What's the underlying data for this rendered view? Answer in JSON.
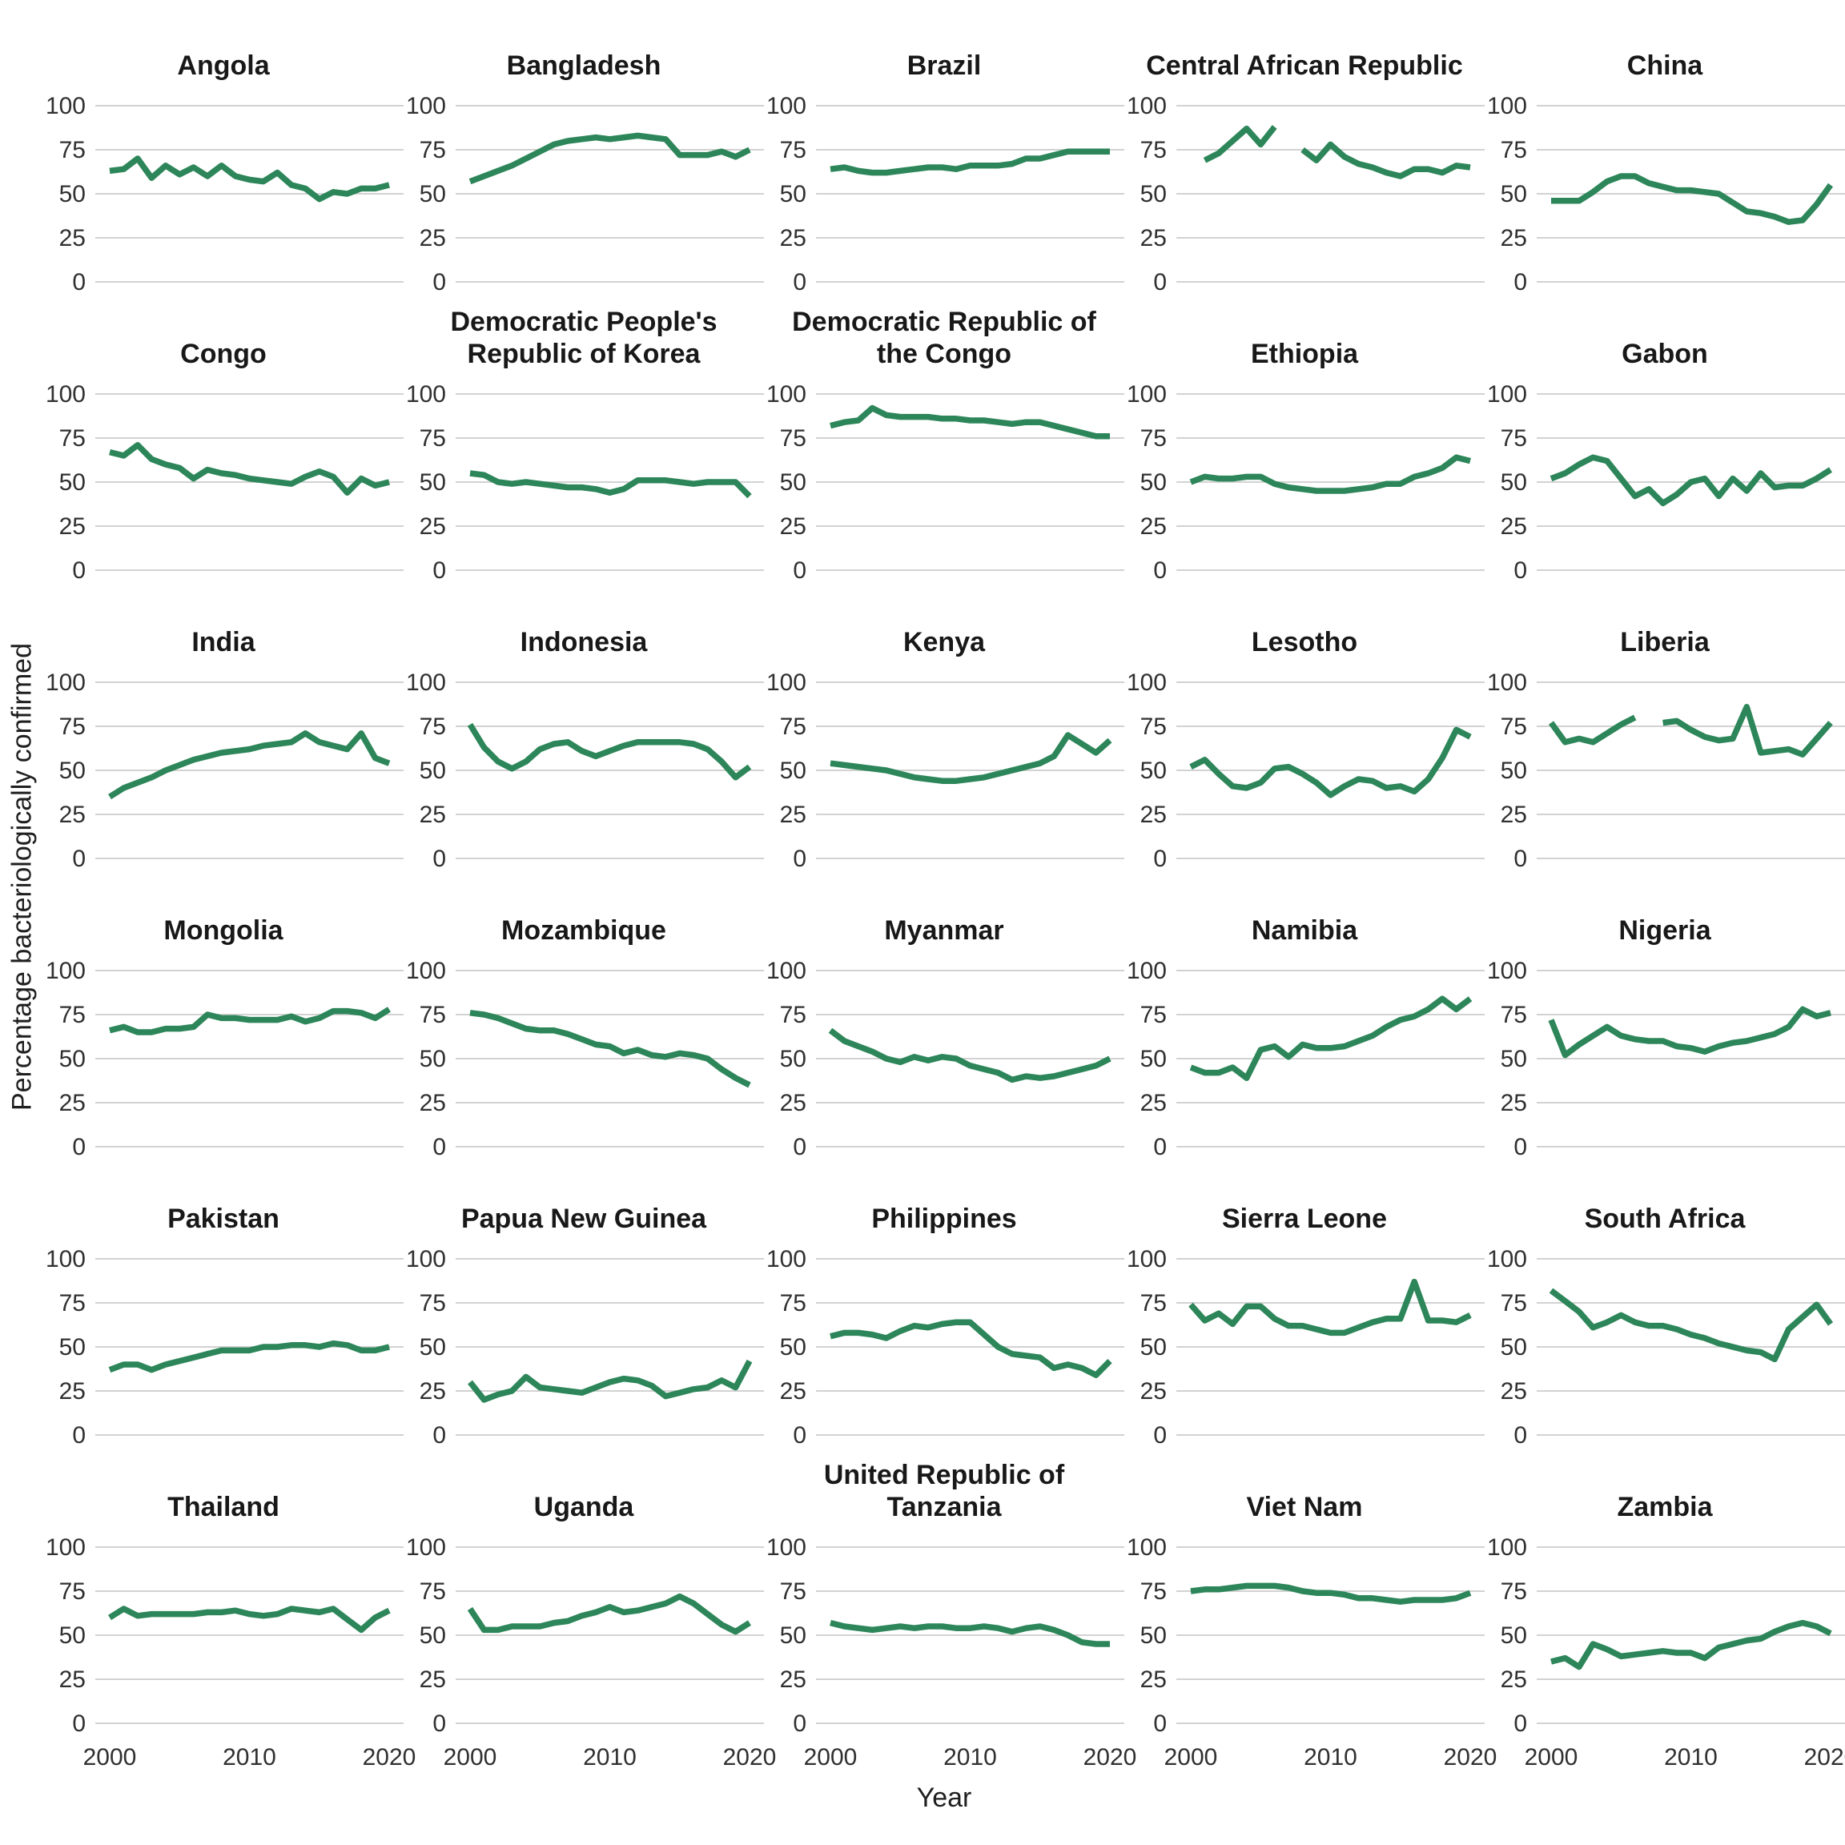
{
  "figure": {
    "y_axis_title": "Percentage bacteriologically confirmed",
    "x_axis_title": "Year",
    "y_ticks": [
      100,
      75,
      50,
      25,
      0
    ],
    "x_ticks": [
      2000,
      2010,
      2020
    ],
    "colors": {
      "line": "#2d8659",
      "gridline": "#d2d2d2",
      "title_text": "#181818",
      "tick_text": "#303030",
      "background": "#ffffff"
    }
  },
  "chart_data": {
    "type": "line",
    "layout": "facet_grid_5_columns_6_rows",
    "title": "",
    "xlabel": "Year",
    "ylabel": "Percentage bacteriologically confirmed",
    "ylim": [
      0,
      100
    ],
    "xlim": [
      2000,
      2020
    ],
    "grid": "horizontal_only",
    "legend_position": "none",
    "x": [
      2000,
      2001,
      2002,
      2003,
      2004,
      2005,
      2006,
      2007,
      2008,
      2009,
      2010,
      2011,
      2012,
      2013,
      2014,
      2015,
      2016,
      2017,
      2018,
      2019,
      2020
    ],
    "series": [
      {
        "name": "Angola",
        "values": [
          63,
          64,
          70,
          59,
          66,
          61,
          65,
          60,
          66,
          60,
          58,
          57,
          62,
          55,
          53,
          47,
          51,
          50,
          53,
          53,
          55
        ]
      },
      {
        "name": "Bangladesh",
        "values": [
          57,
          60,
          63,
          66,
          70,
          74,
          78,
          80,
          81,
          82,
          81,
          82,
          83,
          82,
          81,
          72,
          72,
          72,
          74,
          71,
          75
        ]
      },
      {
        "name": "Brazil",
        "values": [
          64,
          65,
          63,
          62,
          62,
          63,
          64,
          65,
          65,
          64,
          66,
          66,
          66,
          67,
          70,
          70,
          72,
          74,
          74,
          74,
          74
        ]
      },
      {
        "name": "Central African Republic",
        "values": [
          null,
          69,
          73,
          80,
          87,
          78,
          88,
          null,
          75,
          69,
          78,
          71,
          67,
          65,
          62,
          60,
          64,
          64,
          62,
          66,
          65
        ]
      },
      {
        "name": "China",
        "values": [
          46,
          46,
          46,
          51,
          57,
          60,
          60,
          56,
          54,
          52,
          52,
          51,
          50,
          45,
          40,
          39,
          37,
          34,
          35,
          44,
          55
        ]
      },
      {
        "name": "Congo",
        "values": [
          67,
          65,
          71,
          63,
          60,
          58,
          52,
          57,
          55,
          54,
          52,
          51,
          50,
          49,
          53,
          56,
          53,
          44,
          52,
          48,
          50
        ]
      },
      {
        "name": "Democratic People's Republic of Korea",
        "values": [
          55,
          54,
          50,
          49,
          50,
          49,
          48,
          47,
          47,
          46,
          44,
          46,
          51,
          51,
          51,
          50,
          49,
          50,
          50,
          50,
          42
        ]
      },
      {
        "name": "Democratic Republic of the Congo",
        "values": [
          82,
          84,
          85,
          92,
          88,
          87,
          87,
          87,
          86,
          86,
          85,
          85,
          84,
          83,
          84,
          84,
          82,
          80,
          78,
          76,
          76
        ]
      },
      {
        "name": "Ethiopia",
        "values": [
          50,
          53,
          52,
          52,
          53,
          53,
          49,
          47,
          46,
          45,
          45,
          45,
          46,
          47,
          49,
          49,
          53,
          55,
          58,
          64,
          62
        ]
      },
      {
        "name": "Gabon",
        "values": [
          52,
          55,
          60,
          64,
          62,
          52,
          42,
          46,
          38,
          43,
          50,
          52,
          42,
          52,
          45,
          55,
          47,
          48,
          48,
          52,
          57
        ]
      },
      {
        "name": "India",
        "values": [
          35,
          40,
          43,
          46,
          50,
          53,
          56,
          58,
          60,
          61,
          62,
          64,
          65,
          66,
          71,
          66,
          64,
          62,
          71,
          57,
          54
        ]
      },
      {
        "name": "Indonesia",
        "values": [
          76,
          63,
          55,
          51,
          55,
          62,
          65,
          66,
          61,
          58,
          61,
          64,
          66,
          66,
          66,
          66,
          65,
          62,
          55,
          46,
          52
        ]
      },
      {
        "name": "Kenya",
        "values": [
          54,
          53,
          52,
          51,
          50,
          48,
          46,
          45,
          44,
          44,
          45,
          46,
          48,
          50,
          52,
          54,
          58,
          70,
          65,
          60,
          67
        ]
      },
      {
        "name": "Lesotho",
        "values": [
          52,
          56,
          48,
          41,
          40,
          43,
          51,
          52,
          48,
          43,
          36,
          41,
          45,
          44,
          40,
          41,
          38,
          45,
          57,
          73,
          69
        ]
      },
      {
        "name": "Liberia",
        "values": [
          77,
          66,
          68,
          66,
          71,
          76,
          80,
          null,
          77,
          78,
          73,
          69,
          67,
          68,
          86,
          60,
          61,
          62,
          59,
          68,
          77
        ]
      },
      {
        "name": "Mongolia",
        "values": [
          66,
          68,
          65,
          65,
          67,
          67,
          68,
          75,
          73,
          73,
          72,
          72,
          72,
          74,
          71,
          73,
          77,
          77,
          76,
          73,
          78
        ]
      },
      {
        "name": "Mozambique",
        "values": [
          76,
          75,
          73,
          70,
          67,
          66,
          66,
          64,
          61,
          58,
          57,
          53,
          55,
          52,
          51,
          53,
          52,
          50,
          44,
          39,
          35
        ]
      },
      {
        "name": "Myanmar",
        "values": [
          66,
          60,
          57,
          54,
          50,
          48,
          51,
          49,
          51,
          50,
          46,
          44,
          42,
          38,
          40,
          39,
          40,
          42,
          44,
          46,
          50
        ]
      },
      {
        "name": "Namibia",
        "values": [
          45,
          42,
          42,
          45,
          39,
          55,
          57,
          51,
          58,
          56,
          56,
          57,
          60,
          63,
          68,
          72,
          74,
          78,
          84,
          78,
          84
        ]
      },
      {
        "name": "Nigeria",
        "values": [
          72,
          52,
          58,
          63,
          68,
          63,
          61,
          60,
          60,
          57,
          56,
          54,
          57,
          59,
          60,
          62,
          64,
          68,
          78,
          74,
          76
        ]
      },
      {
        "name": "Pakistan",
        "values": [
          37,
          40,
          40,
          37,
          40,
          42,
          44,
          46,
          48,
          48,
          48,
          50,
          50,
          51,
          51,
          50,
          52,
          51,
          48,
          48,
          50
        ]
      },
      {
        "name": "Papua New Guinea",
        "values": [
          30,
          20,
          23,
          25,
          33,
          27,
          26,
          25,
          24,
          27,
          30,
          32,
          31,
          28,
          22,
          24,
          26,
          27,
          31,
          27,
          42
        ]
      },
      {
        "name": "Philippines",
        "values": [
          56,
          58,
          58,
          57,
          55,
          59,
          62,
          61,
          63,
          64,
          64,
          57,
          50,
          46,
          45,
          44,
          38,
          40,
          38,
          34,
          42
        ]
      },
      {
        "name": "Sierra Leone",
        "values": [
          74,
          65,
          69,
          63,
          73,
          73,
          66,
          62,
          62,
          60,
          58,
          58,
          61,
          64,
          66,
          66,
          87,
          65,
          65,
          64,
          68
        ]
      },
      {
        "name": "South Africa",
        "values": [
          82,
          76,
          70,
          61,
          64,
          68,
          64,
          62,
          62,
          60,
          57,
          55,
          52,
          50,
          48,
          47,
          43,
          60,
          67,
          74,
          63
        ]
      },
      {
        "name": "Thailand",
        "values": [
          60,
          65,
          61,
          62,
          62,
          62,
          62,
          63,
          63,
          64,
          62,
          61,
          62,
          65,
          64,
          63,
          65,
          59,
          53,
          60,
          64
        ]
      },
      {
        "name": "Uganda",
        "values": [
          65,
          53,
          53,
          55,
          55,
          55,
          57,
          58,
          61,
          63,
          66,
          63,
          64,
          66,
          68,
          72,
          68,
          62,
          56,
          52,
          57
        ]
      },
      {
        "name": "United Republic of Tanzania",
        "values": [
          57,
          55,
          54,
          53,
          54,
          55,
          54,
          55,
          55,
          54,
          54,
          55,
          54,
          52,
          54,
          55,
          53,
          50,
          46,
          45,
          45
        ]
      },
      {
        "name": "Viet Nam",
        "values": [
          75,
          76,
          76,
          77,
          78,
          78,
          78,
          77,
          75,
          74,
          74,
          73,
          71,
          71,
          70,
          69,
          70,
          70,
          70,
          71,
          74
        ]
      },
      {
        "name": "Zambia",
        "values": [
          35,
          37,
          32,
          45,
          42,
          38,
          39,
          40,
          41,
          40,
          40,
          37,
          43,
          45,
          47,
          48,
          52,
          55,
          57,
          55,
          51
        ]
      }
    ]
  }
}
